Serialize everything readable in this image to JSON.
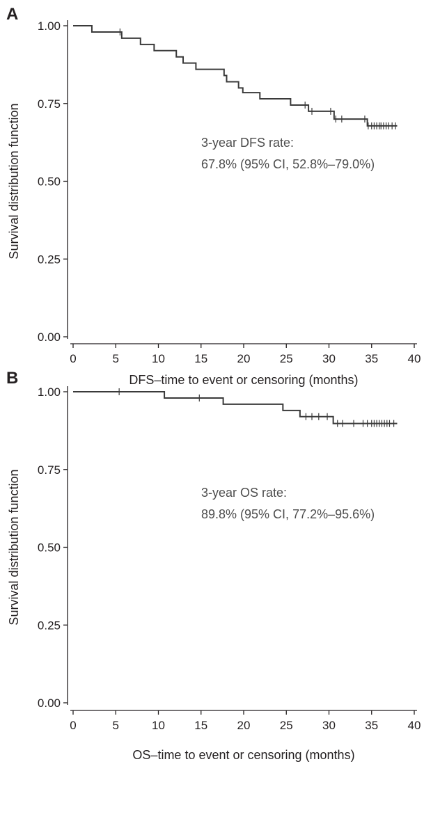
{
  "chart_data": [
    {
      "panel_label": "A",
      "type": "line",
      "subtype": "kaplan-meier step",
      "xlabel": "DFS–time to event or censoring (months)",
      "ylabel": "Survival distribution function",
      "xlim": [
        0,
        40
      ],
      "ylim": [
        0,
        1
      ],
      "xticks": [
        "0",
        "5",
        "10",
        "15",
        "20",
        "25",
        "30",
        "35",
        "40"
      ],
      "yticks": [
        "0.00",
        "0.25",
        "0.50",
        "0.75",
        "1.00"
      ],
      "annotation": [
        "3-year DFS rate:",
        "67.8% (95% CI, 52.8%–79.0%)"
      ],
      "steps": [
        {
          "x": 0,
          "y": 1.0
        },
        {
          "x": 2.2,
          "y": 0.98
        },
        {
          "x": 5.7,
          "y": 0.96
        },
        {
          "x": 7.9,
          "y": 0.94
        },
        {
          "x": 9.5,
          "y": 0.92
        },
        {
          "x": 12.1,
          "y": 0.9
        },
        {
          "x": 12.9,
          "y": 0.88
        },
        {
          "x": 14.4,
          "y": 0.86
        },
        {
          "x": 17.7,
          "y": 0.84
        },
        {
          "x": 18.0,
          "y": 0.82
        },
        {
          "x": 19.4,
          "y": 0.8
        },
        {
          "x": 19.9,
          "y": 0.785
        },
        {
          "x": 21.9,
          "y": 0.765
        },
        {
          "x": 25.5,
          "y": 0.745
        },
        {
          "x": 27.6,
          "y": 0.725
        },
        {
          "x": 30.6,
          "y": 0.7
        },
        {
          "x": 34.5,
          "y": 0.678
        }
      ],
      "end_x": 38,
      "censored": [
        5.5,
        27.2,
        28.0,
        30.2,
        30.8,
        31.5,
        34.2,
        34.6,
        35.0,
        35.3,
        35.6,
        35.9,
        36.1,
        36.4,
        36.7,
        37.0,
        37.4,
        37.8
      ]
    },
    {
      "panel_label": "B",
      "type": "line",
      "subtype": "kaplan-meier step",
      "xlabel": "OS–time to event or censoring (months)",
      "ylabel": "Survival distribution function",
      "xlim": [
        0,
        40
      ],
      "ylim": [
        0,
        1
      ],
      "xticks": [
        "0",
        "5",
        "10",
        "15",
        "20",
        "25",
        "30",
        "35",
        "40"
      ],
      "yticks": [
        "0.00",
        "0.25",
        "0.50",
        "0.75",
        "1.00"
      ],
      "annotation": [
        "3-year OS rate:",
        "89.8% (95% CI, 77.2%–95.6%)"
      ],
      "steps": [
        {
          "x": 0,
          "y": 1.0
        },
        {
          "x": 10.7,
          "y": 0.98
        },
        {
          "x": 17.6,
          "y": 0.96
        },
        {
          "x": 24.6,
          "y": 0.94
        },
        {
          "x": 26.6,
          "y": 0.92
        },
        {
          "x": 30.5,
          "y": 0.898
        }
      ],
      "end_x": 38,
      "censored": [
        5.4,
        14.8,
        27.3,
        28.0,
        28.8,
        29.8,
        31.0,
        31.6,
        32.9,
        34.0,
        34.5,
        35.0,
        35.3,
        35.6,
        35.9,
        36.2,
        36.5,
        36.8,
        37.1,
        37.6
      ]
    }
  ]
}
